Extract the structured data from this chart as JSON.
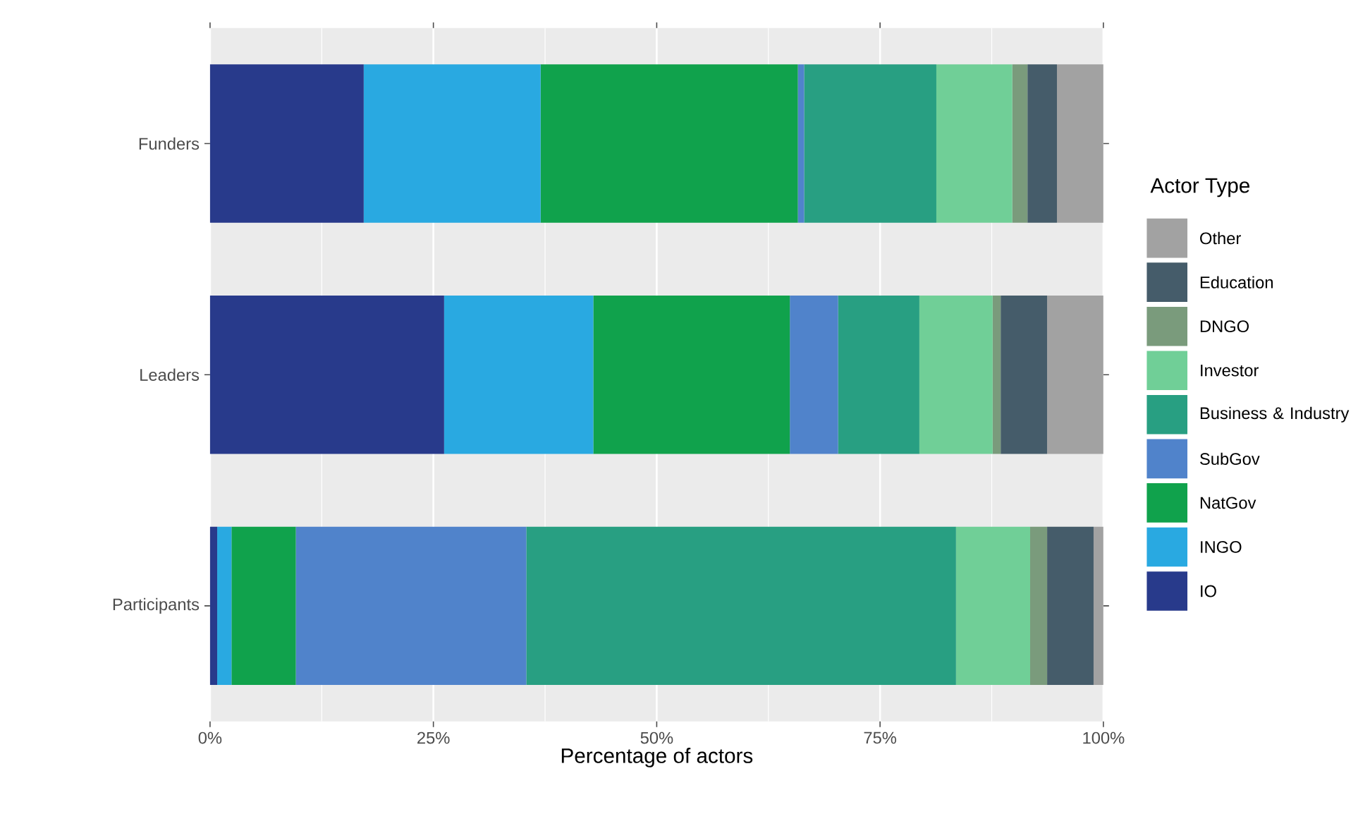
{
  "chart_data": {
    "type": "bar",
    "orientation": "horizontal",
    "stacked": true,
    "xlabel": "Percentage of actors",
    "legend_title": "Actor Type",
    "legend": "right",
    "grid": "x",
    "categories": [
      "Funders",
      "Leaders",
      "Participants"
    ],
    "xlim": [
      0,
      100
    ],
    "xticks": [
      {
        "value": 0,
        "label": "0%"
      },
      {
        "value": 25,
        "label": "25%"
      },
      {
        "value": 50,
        "label": "50%"
      },
      {
        "value": 75,
        "label": "75%"
      },
      {
        "value": 100,
        "label": "100%"
      }
    ],
    "series": [
      {
        "name": "IO",
        "color": "#283a8b",
        "values": [
          17.2,
          26.2,
          0.8
        ]
      },
      {
        "name": "INGO",
        "color": "#29a9e1",
        "values": [
          19.8,
          16.7,
          1.6
        ]
      },
      {
        "name": "NatGov",
        "color": "#10a24c",
        "values": [
          28.8,
          22.0,
          7.2
        ]
      },
      {
        "name": "SubGov",
        "color": "#5083cb",
        "values": [
          0.7,
          5.4,
          25.8
        ]
      },
      {
        "name": "Business & Industry",
        "color": "#289f82",
        "values": [
          14.8,
          9.1,
          48.1
        ]
      },
      {
        "name": "Investor",
        "color": "#70cf97",
        "values": [
          8.5,
          8.2,
          8.3
        ]
      },
      {
        "name": "DNGO",
        "color": "#7a9b7c",
        "values": [
          1.7,
          0.9,
          1.9
        ]
      },
      {
        "name": "Education",
        "color": "#455c6a",
        "values": [
          3.3,
          5.2,
          5.2
        ]
      },
      {
        "name": "Other",
        "color": "#a2a2a2",
        "values": [
          5.2,
          6.3,
          1.1
        ]
      }
    ]
  }
}
